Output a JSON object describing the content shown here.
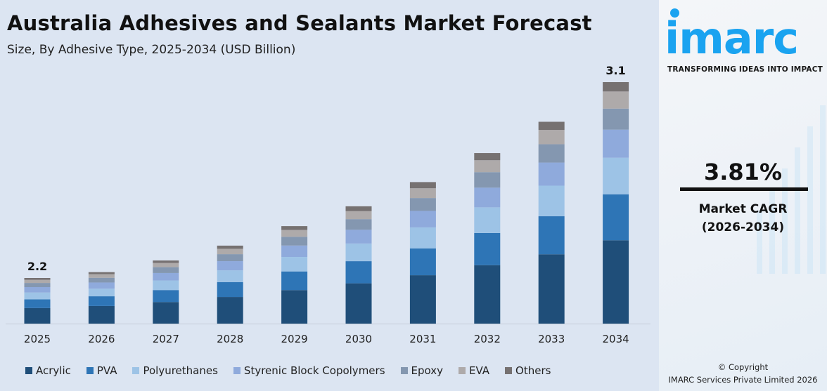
{
  "chart_data": {
    "type": "bar",
    "stacked": true,
    "title": "Australia Adhesives and Sealants Market Forecast",
    "subtitle": "Size, By Adhesive Type, 2025-2034 (USD Billion)",
    "categories": [
      "2025",
      "2026",
      "2027",
      "2028",
      "2029",
      "2030",
      "2031",
      "2032",
      "2033",
      "2034"
    ],
    "totals": [
      2.2,
      2.28,
      2.37,
      2.46,
      2.56,
      2.65,
      2.75,
      2.86,
      2.97,
      3.1
    ],
    "total_labels": {
      "2025": "2.2",
      "2034": "3.1"
    },
    "series": [
      {
        "name": "Acrylic",
        "color": "#1f4e79",
        "values": [
          0.75,
          0.78,
          0.81,
          0.84,
          0.88,
          0.91,
          0.94,
          0.98,
          1.02,
          1.07
        ]
      },
      {
        "name": "PVA",
        "color": "#2e75b6",
        "values": [
          0.42,
          0.43,
          0.45,
          0.47,
          0.49,
          0.5,
          0.52,
          0.54,
          0.56,
          0.59
        ]
      },
      {
        "name": "Polyurethanes",
        "color": "#9dc3e6",
        "values": [
          0.33,
          0.34,
          0.36,
          0.37,
          0.38,
          0.4,
          0.41,
          0.43,
          0.45,
          0.47
        ]
      },
      {
        "name": "Styrenic Block Copolymers",
        "color": "#8faadc",
        "values": [
          0.26,
          0.27,
          0.28,
          0.29,
          0.3,
          0.31,
          0.32,
          0.33,
          0.34,
          0.36
        ]
      },
      {
        "name": "Epoxy",
        "color": "#8497b0",
        "values": [
          0.2,
          0.21,
          0.22,
          0.22,
          0.23,
          0.24,
          0.25,
          0.26,
          0.27,
          0.27
        ]
      },
      {
        "name": "EVA",
        "color": "#aeaaaa",
        "values": [
          0.15,
          0.16,
          0.16,
          0.17,
          0.18,
          0.18,
          0.19,
          0.2,
          0.21,
          0.22
        ]
      },
      {
        "name": "Others",
        "color": "#767171",
        "values": [
          0.09,
          0.09,
          0.09,
          0.1,
          0.1,
          0.11,
          0.12,
          0.12,
          0.12,
          0.12
        ]
      }
    ],
    "legend_position": "bottom",
    "grid": false
  },
  "brand": {
    "logo_text": "imarc",
    "tagline": "TRANSFORMING IDEAS INTO IMPACT"
  },
  "cagr": {
    "value": "3.81%",
    "label": "Market CAGR",
    "period": "(2026-2034)"
  },
  "copyright": {
    "line1": "© Copyright",
    "line2": "IMARC Services Private Limited 2026"
  }
}
